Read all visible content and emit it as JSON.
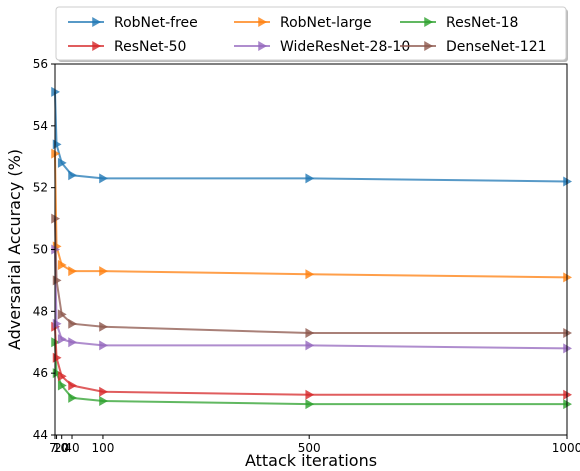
{
  "chart_data": {
    "type": "line",
    "xlabel": "Attack iterations",
    "ylabel": "Adversarial Accuracy (%)",
    "xlim": [
      7,
      1000
    ],
    "ylim": [
      44,
      56
    ],
    "xticks": [
      7,
      10,
      20,
      40,
      100,
      500,
      1000
    ],
    "xtick_labels": [
      "7",
      "10",
      "20",
      "40",
      "100",
      "500",
      "1000"
    ],
    "yticks": [
      44,
      46,
      48,
      50,
      52,
      54,
      56
    ],
    "ytick_labels": [
      "44",
      "46",
      "48",
      "50",
      "52",
      "54",
      "56"
    ],
    "legend_position": "top",
    "legend_columns": 3,
    "grid": false,
    "marker": "triangle-right",
    "x": [
      7,
      10,
      20,
      40,
      100,
      500,
      1000
    ],
    "series": [
      {
        "name": "RobNet-free",
        "color": "#1f77b4",
        "values": [
          55.1,
          53.4,
          52.8,
          52.4,
          52.3,
          52.3,
          52.2
        ]
      },
      {
        "name": "RobNet-large",
        "color": "#ff7f0e",
        "values": [
          53.1,
          50.1,
          49.5,
          49.3,
          49.3,
          49.2,
          49.1
        ]
      },
      {
        "name": "ResNet-18",
        "color": "#2ca02c",
        "values": [
          47.0,
          46.0,
          45.6,
          45.2,
          45.1,
          45.0,
          45.0
        ]
      },
      {
        "name": "ResNet-50",
        "color": "#d62728",
        "values": [
          47.5,
          46.5,
          45.9,
          45.6,
          45.4,
          45.3,
          45.3
        ]
      },
      {
        "name": "WideResNet-28-10",
        "color": "#9467bd",
        "values": [
          50.0,
          47.6,
          47.1,
          47.0,
          46.9,
          46.9,
          46.8
        ]
      },
      {
        "name": "DenseNet-121",
        "color": "#8c564b",
        "values": [
          51.0,
          49.0,
          47.9,
          47.6,
          47.5,
          47.3,
          47.3
        ]
      }
    ]
  }
}
